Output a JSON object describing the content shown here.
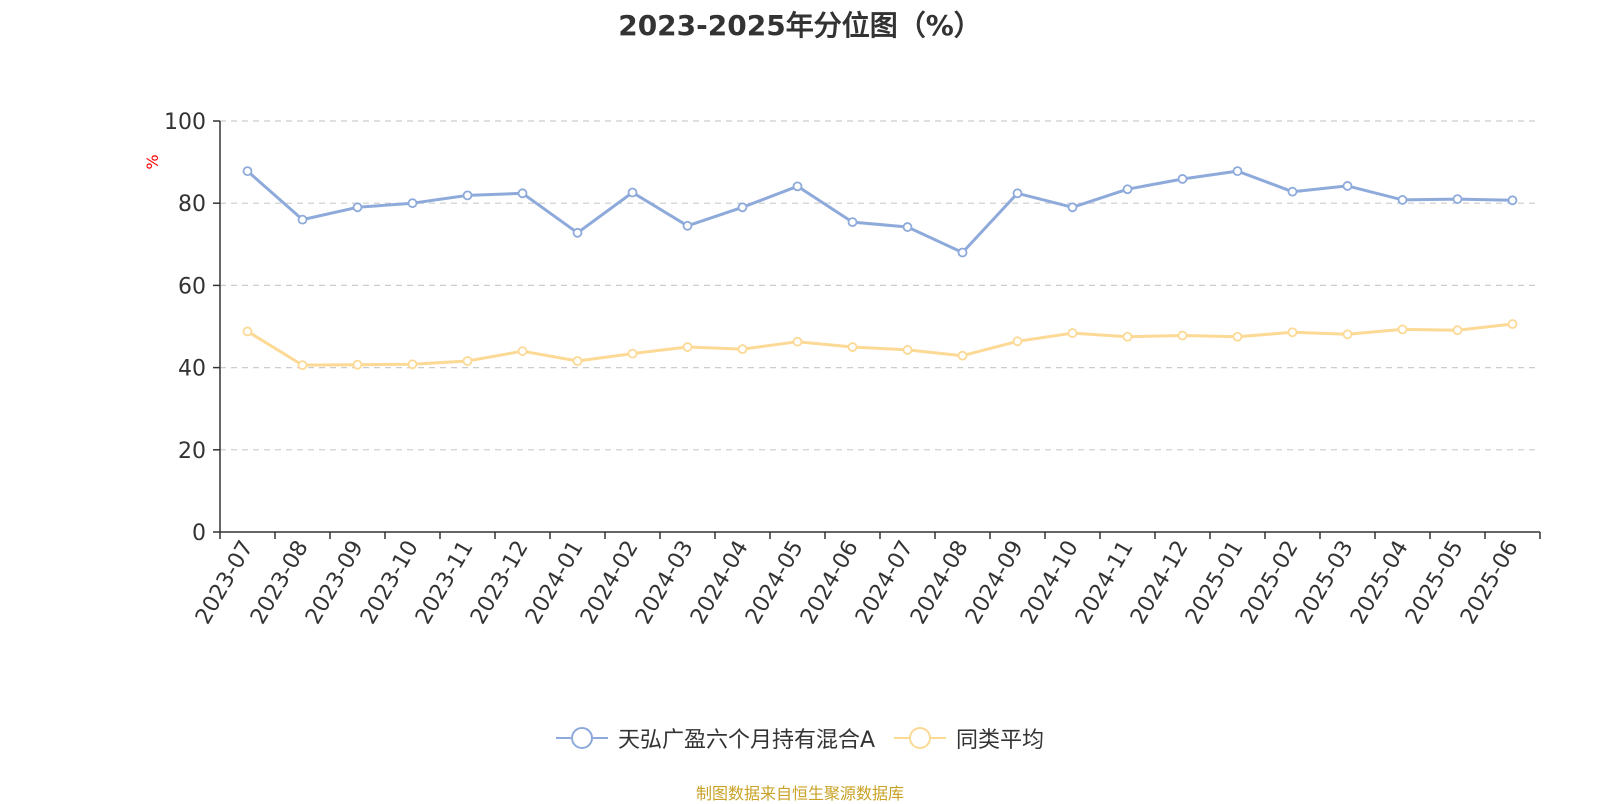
{
  "title": "2023-2025年分位图（%）",
  "source": "制图数据来自恒生聚源数据库",
  "colors": {
    "series_a": "#8eaadb",
    "series_b": "#fcd995",
    "source": "#c9a227",
    "unit": "#ff0000",
    "axis": "#333333",
    "grid": "#cccccc"
  },
  "chart_data": {
    "type": "line",
    "title": "2023-2025年分位图（%）",
    "ylabel": "%",
    "xlabel": "",
    "ylim": [
      0,
      100
    ],
    "yticks": [
      "0",
      "20",
      "40",
      "60",
      "80",
      "100"
    ],
    "grid": true,
    "legend": "bottom-center",
    "categories": [
      "2023-07",
      "2023-08",
      "2023-09",
      "2023-10",
      "2023-11",
      "2023-12",
      "2024-01",
      "2024-02",
      "2024-03",
      "2024-04",
      "2024-05",
      "2024-06",
      "2024-07",
      "2024-08",
      "2024-09",
      "2024-10",
      "2024-11",
      "2024-12",
      "2025-01",
      "2025-02",
      "2025-03",
      "2025-04",
      "2025-05",
      "2025-06"
    ],
    "series": [
      {
        "name": "天弘广盈六个月持有混合A",
        "values": [
          87.8,
          76.0,
          79.0,
          80.0,
          81.9,
          82.4,
          72.8,
          82.6,
          74.5,
          79.0,
          84.1,
          75.4,
          74.2,
          68.0,
          82.4,
          79.0,
          83.4,
          85.9,
          87.8,
          82.8,
          84.2,
          80.8,
          81.0,
          80.7
        ]
      },
      {
        "name": "同类平均",
        "values": [
          48.8,
          40.6,
          40.7,
          40.8,
          41.6,
          44.0,
          41.6,
          43.4,
          45.0,
          44.5,
          46.3,
          45.0,
          44.3,
          42.9,
          46.4,
          48.4,
          47.5,
          47.8,
          47.5,
          48.6,
          48.1,
          49.3,
          49.1,
          50.6
        ]
      }
    ]
  }
}
